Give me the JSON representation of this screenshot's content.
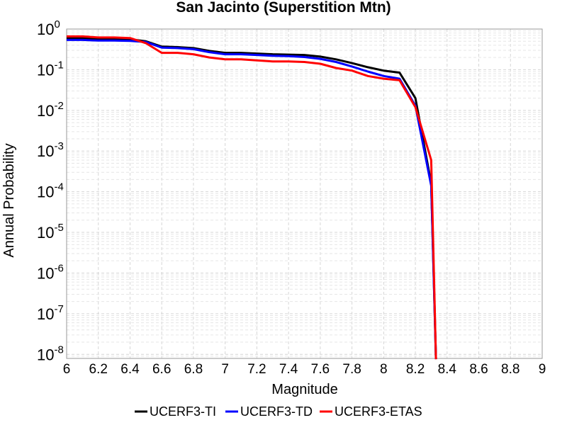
{
  "chart_data": {
    "type": "line",
    "title": "San Jacinto (Superstition Mtn)",
    "xlabel": "Magnitude",
    "ylabel": "Annual Probability",
    "xlim": [
      6,
      9
    ],
    "ylim_exponent": [
      -8.1,
      0
    ],
    "yscale": "log",
    "grid": true,
    "legend_position": "bottom",
    "x_ticks": [
      "6",
      "6.2",
      "6.4",
      "6.6",
      "6.8",
      "7",
      "7.2",
      "7.4",
      "7.6",
      "7.8",
      "8",
      "8.2",
      "8.4",
      "8.6",
      "8.8",
      "9"
    ],
    "y_ticks": [
      {
        "base": "10",
        "exp": "0",
        "value": 1
      },
      {
        "base": "10",
        "exp": "-1",
        "value": 0.1
      },
      {
        "base": "10",
        "exp": "-2",
        "value": 0.01
      },
      {
        "base": "10",
        "exp": "-3",
        "value": 0.001
      },
      {
        "base": "10",
        "exp": "-4",
        "value": 0.0001
      },
      {
        "base": "10",
        "exp": "-5",
        "value": 1e-05
      },
      {
        "base": "10",
        "exp": "-6",
        "value": 1e-06
      },
      {
        "base": "10",
        "exp": "-7",
        "value": 1e-07
      },
      {
        "base": "10",
        "exp": "-8",
        "value": 1e-08
      }
    ],
    "series": [
      {
        "name": "UCERF3-TI",
        "color": "#000000",
        "x": [
          6.0,
          6.1,
          6.2,
          6.3,
          6.4,
          6.5,
          6.6,
          6.7,
          6.8,
          6.9,
          7.0,
          7.1,
          7.2,
          7.3,
          7.4,
          7.5,
          7.6,
          7.7,
          7.8,
          7.9,
          8.0,
          8.1,
          8.2,
          8.3,
          8.33
        ],
        "y": [
          0.6,
          0.6,
          0.58,
          0.58,
          0.56,
          0.5,
          0.37,
          0.36,
          0.34,
          0.29,
          0.26,
          0.26,
          0.25,
          0.24,
          0.235,
          0.23,
          0.21,
          0.18,
          0.145,
          0.115,
          0.095,
          0.085,
          0.02,
          0.00016,
          5e-09
        ]
      },
      {
        "name": "UCERF3-TD",
        "color": "#0000ff",
        "x": [
          6.0,
          6.1,
          6.2,
          6.3,
          6.4,
          6.5,
          6.6,
          6.7,
          6.8,
          6.9,
          7.0,
          7.1,
          7.2,
          7.3,
          7.4,
          7.5,
          7.6,
          7.7,
          7.8,
          7.9,
          8.0,
          8.1,
          8.2,
          8.3,
          8.33
        ],
        "y": [
          0.54,
          0.54,
          0.52,
          0.52,
          0.51,
          0.48,
          0.35,
          0.34,
          0.32,
          0.27,
          0.24,
          0.24,
          0.23,
          0.22,
          0.215,
          0.205,
          0.185,
          0.155,
          0.12,
          0.09,
          0.07,
          0.06,
          0.013,
          0.00014,
          5e-09
        ]
      },
      {
        "name": "UCERF3-ETAS",
        "color": "#ff0000",
        "x": [
          6.0,
          6.1,
          6.2,
          6.3,
          6.4,
          6.5,
          6.6,
          6.7,
          6.8,
          6.9,
          7.0,
          7.1,
          7.2,
          7.3,
          7.4,
          7.5,
          7.6,
          7.7,
          7.8,
          7.9,
          8.0,
          8.1,
          8.2,
          8.3,
          8.33
        ],
        "y": [
          0.66,
          0.66,
          0.62,
          0.62,
          0.6,
          0.45,
          0.26,
          0.26,
          0.24,
          0.2,
          0.18,
          0.18,
          0.17,
          0.16,
          0.16,
          0.155,
          0.14,
          0.11,
          0.095,
          0.07,
          0.06,
          0.055,
          0.012,
          0.0006,
          5e-09
        ]
      }
    ]
  }
}
